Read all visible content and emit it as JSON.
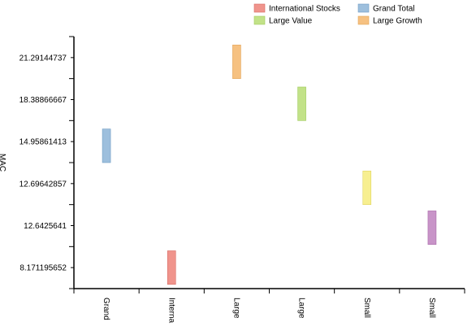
{
  "chart_data": {
    "type": "bar",
    "ylabel": "MAC",
    "y_tick_labels": [
      "8.171195652",
      "12.6425641",
      "12.69642857",
      "14.95861413",
      "18.38866667",
      "21.29144737"
    ],
    "categories": [
      "Grand",
      "Interna",
      "Large",
      "Large",
      "Small",
      "Small"
    ],
    "series": [
      {
        "name": "Grand Total",
        "color": "#9dbfdd",
        "stroke": "#6f9cc4",
        "category_index": 0,
        "low": 3.0,
        "high": 3.8
      },
      {
        "name": "International Stocks",
        "color": "#f0948c",
        "stroke": "#d86b63",
        "category_index": 1,
        "low": 0.1,
        "high": 0.9
      },
      {
        "name": "Large Growth",
        "color": "#f6c181",
        "stroke": "#e3a458",
        "category_index": 2,
        "low": 5.0,
        "high": 5.8
      },
      {
        "name": "Large Value",
        "color": "#c2e288",
        "stroke": "#9fcb5a",
        "category_index": 3,
        "low": 4.0,
        "high": 4.8
      },
      {
        "name": "",
        "color": "#f7ef90",
        "stroke": "#e0d45e",
        "category_index": 4,
        "low": 2.0,
        "high": 2.8
      },
      {
        "name": "",
        "color": "#c894c8",
        "stroke": "#a96aa9",
        "category_index": 5,
        "low": 1.05,
        "high": 1.85
      }
    ],
    "legend": {
      "placement": "top-right",
      "entries": [
        {
          "label": "International Stocks",
          "color": "#f0948c",
          "stroke": "#d86b63"
        },
        {
          "label": "Grand Total",
          "color": "#9dbfdd",
          "stroke": "#6f9cc4"
        },
        {
          "label": "Large Value",
          "color": "#c2e288",
          "stroke": "#9fcb5a"
        },
        {
          "label": "Large Growth",
          "color": "#f6c181",
          "stroke": "#e3a458"
        }
      ]
    },
    "grid": false,
    "y_index_range": [
      0,
      6
    ]
  }
}
